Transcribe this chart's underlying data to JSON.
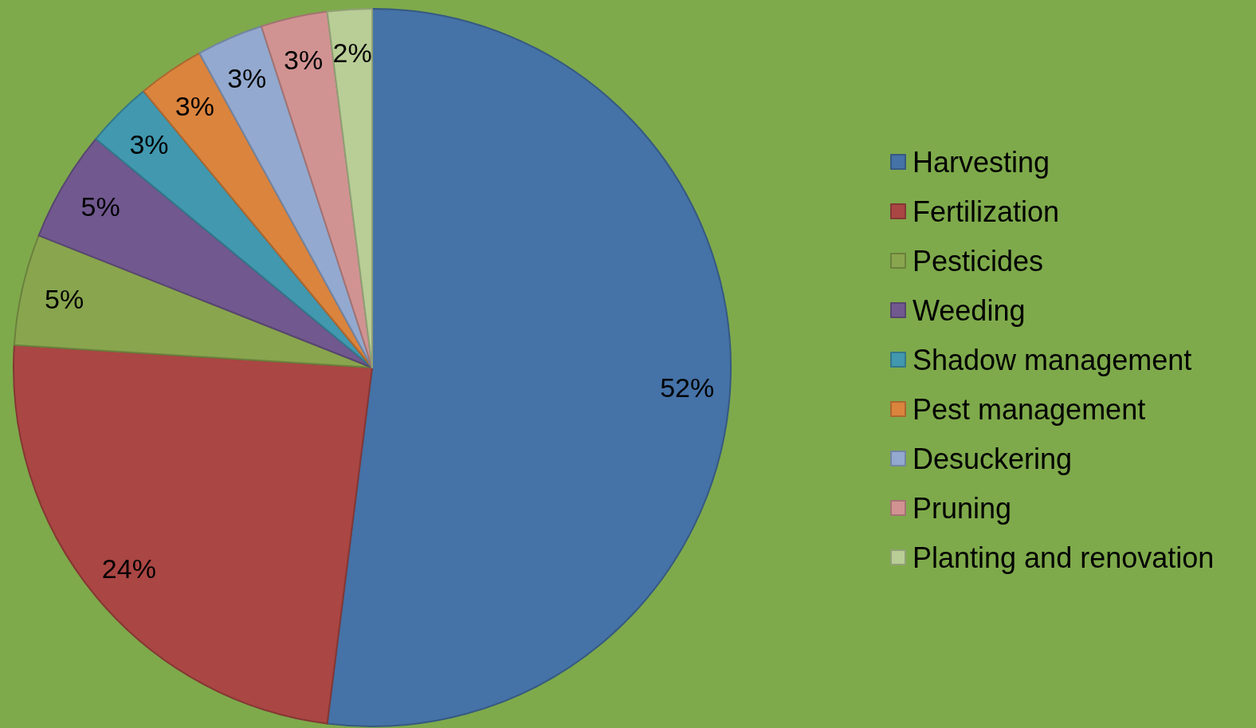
{
  "chart_data": {
    "type": "pie",
    "categories": [
      "Harvesting",
      "Fertilization",
      "Pesticides",
      "Weeding",
      "Shadow management",
      "Pest management",
      "Desuckering",
      "Pruning",
      "Planting and renovation"
    ],
    "values": [
      52,
      24,
      5,
      5,
      3,
      3,
      3,
      3,
      2
    ],
    "colors": [
      "#4572a7",
      "#aa4643",
      "#89a54e",
      "#71588f",
      "#4198af",
      "#db843d",
      "#93a9cf",
      "#d19392",
      "#b9cd96"
    ],
    "value_labels": [
      "52%",
      "24%",
      "5%",
      "5%",
      "3%",
      "3%",
      "3%",
      "3%",
      "2%"
    ],
    "legend": "right"
  }
}
